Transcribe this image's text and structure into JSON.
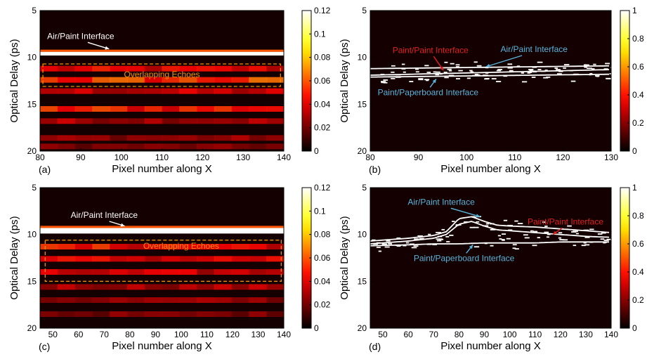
{
  "chart_data": [
    {
      "type": "heatmap",
      "panel_label": "(a)",
      "xlabel": "Pixel number along X",
      "ylabel": "Optical Delay (ps)",
      "xlim": [
        80,
        140
      ],
      "ylim": [
        5,
        20
      ],
      "y_inverted": true,
      "xticks": [
        80,
        90,
        100,
        110,
        120,
        130,
        140
      ],
      "yticks": [
        5,
        10,
        15,
        20
      ],
      "colorbar": {
        "colormap": "hot",
        "range": [
          0,
          0.12
        ],
        "ticks": [
          "0",
          "0.02",
          "0.04",
          "0.06",
          "0.08",
          "0.1",
          "0.12"
        ]
      },
      "bright_band": {
        "name": "Air/Paint Interface",
        "delay_ps": 9.6,
        "width_ps": 0.4,
        "value": 0.12
      },
      "echo_bands": [
        {
          "delay_ps": 11.2,
          "value": 0.045
        },
        {
          "delay_ps": 12.4,
          "value": 0.06
        },
        {
          "delay_ps": 13.6,
          "value": 0.04
        },
        {
          "delay_ps": 15.5,
          "value": 0.055
        },
        {
          "delay_ps": 16.8,
          "value": 0.035
        },
        {
          "delay_ps": 18.6,
          "value": 0.03
        },
        {
          "delay_ps": 19.5,
          "value": 0.025
        }
      ],
      "annotations": [
        {
          "text": "Air/Paint Interface",
          "color": "#ffffff",
          "x": 90,
          "y": 7.8,
          "arrow_to": {
            "x": 97,
            "y": 9.1
          }
        },
        {
          "text": "Overlapping Echoes",
          "color": "#f09000",
          "x": 110,
          "y": 11.9
        }
      ],
      "highlight_box": {
        "x": [
          80.7,
          139.2
        ],
        "y": [
          10.7,
          13.1
        ],
        "color": "#f09000"
      }
    },
    {
      "type": "heatmap",
      "panel_label": "(b)",
      "xlabel": "Pixel number along X",
      "ylabel": "Optical Delay (ps)",
      "xlim": [
        80,
        130
      ],
      "ylim": [
        5,
        20
      ],
      "y_inverted": true,
      "xticks": [
        80,
        90,
        100,
        110,
        120,
        130
      ],
      "yticks": [
        5,
        10,
        15,
        20
      ],
      "colorbar": {
        "colormap": "hot",
        "range": [
          0,
          1
        ],
        "ticks": [
          "0",
          "0.2",
          "0.4",
          "0.6",
          "0.8",
          "1"
        ]
      },
      "interfaces": [
        {
          "name": "Air/Paint Interface",
          "x": [
            80,
            130
          ],
          "delay_ps": [
            11.2,
            10.9
          ]
        },
        {
          "name": "Paint/Paint Interface",
          "x": [
            80,
            130
          ],
          "delay_ps": [
            11.9,
            11.3
          ]
        },
        {
          "name": "Paint/Paperboard Interface",
          "x": [
            80,
            130
          ],
          "delay_ps": [
            12.1,
            11.8
          ]
        }
      ],
      "annotations": [
        {
          "text": "Paint/Paint Interface",
          "color": "#e02020",
          "x": 92.5,
          "y": 9.3,
          "arrow_to": {
            "x": 95.2,
            "y": 11.4
          }
        },
        {
          "text": "Air/Paint Interface",
          "color": "#5ab4dc",
          "x": 114,
          "y": 9.2,
          "arrow_to": {
            "x": 104,
            "y": 11.0
          }
        },
        {
          "text": "Paint/Paperboard Interface",
          "color": "#5ab4dc",
          "x": 92,
          "y": 13.8,
          "arrow_to": {
            "x": 93.7,
            "y": 12.3
          }
        }
      ]
    },
    {
      "type": "heatmap",
      "panel_label": "(c)",
      "xlabel": "Pixel number along X",
      "ylabel": "Optical Delay (ps)",
      "xlim": [
        45,
        140
      ],
      "ylim": [
        5,
        20
      ],
      "y_inverted": true,
      "xticks": [
        50,
        60,
        70,
        80,
        90,
        100,
        110,
        120,
        130,
        140
      ],
      "yticks": [
        5,
        10,
        15,
        20
      ],
      "colorbar": {
        "colormap": "hot",
        "range": [
          0,
          0.12
        ],
        "ticks": [
          "0",
          "0.02",
          "0.04",
          "0.06",
          "0.08",
          "0.1",
          "0.12"
        ]
      },
      "bright_band": {
        "name": "Air/Paint Interface",
        "delay_ps": 9.6,
        "width_ps": 0.6,
        "value": 0.12
      },
      "echo_bands": [
        {
          "delay_ps": 11.3,
          "value": 0.05
        },
        {
          "delay_ps": 12.6,
          "value": 0.045
        },
        {
          "delay_ps": 14.0,
          "value": 0.04
        },
        {
          "delay_ps": 15.6,
          "value": 0.035
        },
        {
          "delay_ps": 17.0,
          "value": 0.03
        },
        {
          "delay_ps": 18.5,
          "value": 0.025
        }
      ],
      "annotations": [
        {
          "text": "Air/Paint Interface",
          "color": "#ffffff",
          "x": 70,
          "y": 8.0,
          "arrow_to": {
            "x": 78,
            "y": 9.1
          }
        },
        {
          "text": "Overlapping Echoes",
          "color": "#f09000",
          "x": 100,
          "y": 11.3
        }
      ],
      "highlight_box": {
        "x": [
          47,
          139
        ],
        "y": [
          10.6,
          15.0
        ],
        "color": "#f09000"
      }
    },
    {
      "type": "heatmap",
      "panel_label": "(d)",
      "xlabel": "Pixel number along X",
      "ylabel": "Optical Delay (ps)",
      "xlim": [
        45,
        140
      ],
      "ylim": [
        5,
        20
      ],
      "y_inverted": true,
      "xticks": [
        50,
        60,
        70,
        80,
        90,
        100,
        110,
        120,
        130,
        140
      ],
      "yticks": [
        5,
        10,
        15,
        20
      ],
      "colorbar": {
        "colormap": "hot",
        "range": [
          0,
          1
        ],
        "ticks": [
          "0",
          "0.2",
          "0.4",
          "0.6",
          "0.8",
          "1"
        ]
      },
      "interfaces": [
        {
          "name": "Air/Paint Interface",
          "x": [
            45,
            60,
            70,
            75,
            80,
            85,
            90,
            95,
            100,
            110,
            120,
            130,
            140
          ],
          "delay_ps": [
            10.7,
            10.4,
            10.1,
            9.7,
            8.3,
            8.1,
            8.6,
            9.0,
            9.1,
            9.2,
            9.4,
            9.6,
            9.8
          ]
        },
        {
          "name": "Paint/Paint Interface",
          "x": [
            45,
            60,
            70,
            75,
            80,
            85,
            90,
            95,
            100,
            110,
            120,
            130,
            140
          ],
          "delay_ps": [
            11.0,
            10.7,
            10.4,
            10.0,
            8.9,
            8.6,
            9.1,
            9.5,
            9.6,
            9.8,
            10.0,
            10.2,
            10.3
          ]
        },
        {
          "name": "Paint/Paperboard Interface",
          "x": [
            45,
            60,
            70,
            80,
            90,
            100,
            110,
            120,
            130,
            140
          ],
          "delay_ps": [
            11.2,
            11.1,
            11.0,
            11.0,
            10.9,
            10.9,
            10.9,
            10.8,
            10.8,
            10.8
          ]
        }
      ],
      "annotations": [
        {
          "text": "Air/Paint Interface",
          "color": "#5ab4dc",
          "x": 73,
          "y": 6.6,
          "arrow_to": {
            "x": 88.3,
            "y": 8.1
          }
        },
        {
          "text": "Paint/Paint Interface",
          "color": "#e02020",
          "x": 122,
          "y": 8.7,
          "arrow_to": {
            "x": 117,
            "y": 10.0
          }
        },
        {
          "text": "Paint/Paperboard Interface",
          "color": "#5ab4dc",
          "x": 82,
          "y": 12.6,
          "arrow_to": {
            "x": 85.5,
            "y": 11.1
          }
        }
      ]
    }
  ]
}
